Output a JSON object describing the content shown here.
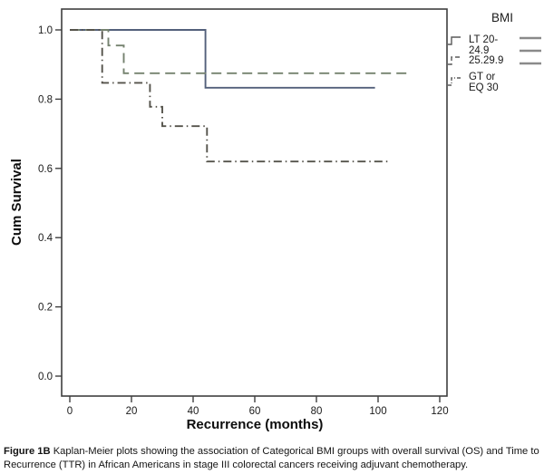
{
  "figure": {
    "caption_prefix": "Figure 1B",
    "caption_text": " Kaplan-Meier plots showing the association of Categorical BMI groups with overall survival (OS) and Time to Recurrence (TTR) in African Americans in stage III colorectal cancers receiving adjuvant chemotherapy."
  },
  "chart_data": {
    "type": "line",
    "subtype": "kaplan-meier-step",
    "title": "",
    "xlabel": "Recurrence (months)",
    "ylabel": "Cum Survival",
    "legend_title": "BMI",
    "legend_position": "top-right-outside",
    "grid": false,
    "xlim": [
      0,
      120
    ],
    "ylim": [
      0.0,
      1.0
    ],
    "xticks": [
      "0",
      "20",
      "40",
      "60",
      "80",
      "100",
      "120"
    ],
    "yticks": [
      "0.0",
      "0.2",
      "0.4",
      "0.6",
      "0.8",
      "1.0"
    ],
    "series": [
      {
        "name": "LT 20-24.9",
        "label_lines": [
          "LT 20-",
          "24.9"
        ],
        "style": "solid",
        "color": "#53607b",
        "points": [
          [
            0,
            1.0
          ],
          [
            44,
            1.0
          ],
          [
            44,
            0.833
          ],
          [
            99,
            0.833
          ]
        ]
      },
      {
        "name": "25.29.9",
        "label_lines": [
          "25.29.9"
        ],
        "style": "dashed",
        "color": "#75826f",
        "points": [
          [
            0,
            1.0
          ],
          [
            12.5,
            1.0
          ],
          [
            12.5,
            0.955
          ],
          [
            17.5,
            0.955
          ],
          [
            17.5,
            0.875
          ],
          [
            110,
            0.875
          ]
        ]
      },
      {
        "name": "GT or EQ 30",
        "label_lines": [
          "GT or",
          "EQ 30"
        ],
        "style": "dashdot",
        "color": "#55534b",
        "points": [
          [
            0,
            1.0
          ],
          [
            10.5,
            1.0
          ],
          [
            10.5,
            0.847
          ],
          [
            26,
            0.847
          ],
          [
            26,
            0.778
          ],
          [
            30,
            0.778
          ],
          [
            30,
            0.722
          ],
          [
            44.5,
            0.722
          ],
          [
            44.5,
            0.62
          ],
          [
            104,
            0.62
          ]
        ]
      }
    ]
  }
}
